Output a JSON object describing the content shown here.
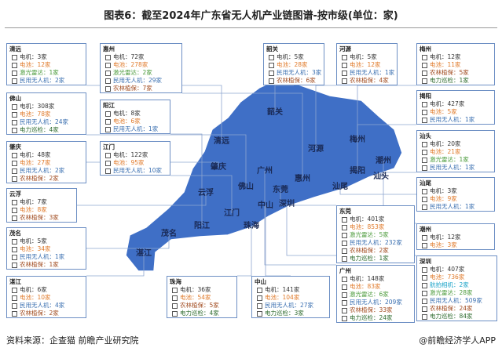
{
  "header": {
    "title": "图表6：截至2024年广东省无人机产业链图谱-按市级(单位：家)"
  },
  "map": {
    "fill": "#3f6fc6",
    "labels": [
      "韶关",
      "清远",
      "河源",
      "梅州",
      "肇庆",
      "广州",
      "惠州",
      "揭阳",
      "潮州",
      "汕头",
      "云浮",
      "佛山",
      "东莞",
      "汕尾",
      "深圳",
      "中山",
      "江门",
      "阳江",
      "珠海",
      "茂名",
      "湛江"
    ]
  },
  "boxes": [
    {
      "city": "清远",
      "items": [
        {
          "text": "电机：3家",
          "color": "#333333"
        },
        {
          "text": "电池：12家",
          "color": "#e07a2a"
        },
        {
          "text": "激光雷达：1家",
          "color": "#4a9a3a"
        },
        {
          "text": "民用无人机：2家",
          "color": "#3a6fb0"
        }
      ]
    },
    {
      "city": "惠州",
      "items": [
        {
          "text": "电机：72家",
          "color": "#333333"
        },
        {
          "text": "电池：278家",
          "color": "#e07a2a"
        },
        {
          "text": "激光雷达：2家",
          "color": "#4a9a3a"
        },
        {
          "text": "民用无人机：29家",
          "color": "#3a6fb0"
        },
        {
          "text": "农林植保：7家",
          "color": "#a04a1e"
        }
      ]
    },
    {
      "city": "韶关",
      "items": [
        {
          "text": "电机：5家",
          "color": "#333333"
        },
        {
          "text": "电池：28家",
          "color": "#e07a2a"
        },
        {
          "text": "民用无人机：3家",
          "color": "#3a6fb0"
        },
        {
          "text": "农林植保：6家",
          "color": "#a04a1e"
        }
      ]
    },
    {
      "city": "河源",
      "items": [
        {
          "text": "电机：5家",
          "color": "#333333"
        },
        {
          "text": "电池：12家",
          "color": "#e07a2a"
        },
        {
          "text": "民用无人机：1家",
          "color": "#3a6fb0"
        },
        {
          "text": "农林植保：4家",
          "color": "#a04a1e"
        }
      ]
    },
    {
      "city": "梅州",
      "items": [
        {
          "text": "电机：12家",
          "color": "#333333"
        },
        {
          "text": "电池：11家",
          "color": "#e07a2a"
        },
        {
          "text": "农林植保：5家",
          "color": "#a04a1e"
        },
        {
          "text": "电力巡检：1家",
          "color": "#2e6b2e"
        }
      ]
    },
    {
      "city": "佛山",
      "items": [
        {
          "text": "电机：308家",
          "color": "#333333"
        },
        {
          "text": "电池：78家",
          "color": "#e07a2a"
        },
        {
          "text": "民用无人机：24家",
          "color": "#3a6fb0"
        },
        {
          "text": "电力巡检：4家",
          "color": "#2e6b2e"
        }
      ]
    },
    {
      "city": "阳江",
      "items": [
        {
          "text": "电机：8家",
          "color": "#333333"
        },
        {
          "text": "电池：6家",
          "color": "#e07a2a"
        },
        {
          "text": "民用无人机：1家",
          "color": "#3a6fb0"
        }
      ]
    },
    {
      "city": "揭阳",
      "items": [
        {
          "text": "电机：427家",
          "color": "#333333"
        },
        {
          "text": "电池：5家",
          "color": "#e07a2a"
        },
        {
          "text": "民用无人机：1家",
          "color": "#3a6fb0"
        }
      ]
    },
    {
      "city": "江门",
      "items": [
        {
          "text": "电机：122家",
          "color": "#333333"
        },
        {
          "text": "电池：95家",
          "color": "#e07a2a"
        },
        {
          "text": "民用无人机：10家",
          "color": "#3a6fb0"
        }
      ]
    },
    {
      "city": "肇庆",
      "items": [
        {
          "text": "电机：48家",
          "color": "#333333"
        },
        {
          "text": "电池：27家",
          "color": "#e07a2a"
        },
        {
          "text": "民用无人机：2家",
          "color": "#3a6fb0"
        },
        {
          "text": "农林植保：2家",
          "color": "#a04a1e"
        }
      ]
    },
    {
      "city": "汕头",
      "items": [
        {
          "text": "电机：20家",
          "color": "#333333"
        },
        {
          "text": "电池：21家",
          "color": "#e07a2a"
        },
        {
          "text": "激光雷达：1家",
          "color": "#4a9a3a"
        },
        {
          "text": "民用无人机：1家",
          "color": "#3a6fb0"
        }
      ]
    },
    {
      "city": "云浮",
      "items": [
        {
          "text": "电机：7家",
          "color": "#333333"
        },
        {
          "text": "电池：8家",
          "color": "#e07a2a"
        },
        {
          "text": "农林植保：3家",
          "color": "#a04a1e"
        }
      ]
    },
    {
      "city": "汕尾",
      "items": [
        {
          "text": "电机：3家",
          "color": "#333333"
        },
        {
          "text": "电池：9家",
          "color": "#e07a2a"
        },
        {
          "text": "民用无人机：1家",
          "color": "#3a6fb0"
        }
      ]
    },
    {
      "city": "东莞",
      "items": [
        {
          "text": "电机：401家",
          "color": "#333333"
        },
        {
          "text": "电池：853家",
          "color": "#e07a2a"
        },
        {
          "text": "激光雷达：5家",
          "color": "#4a9a3a"
        },
        {
          "text": "民用无人机：232家",
          "color": "#3a6fb0"
        },
        {
          "text": "农林植保：2家",
          "color": "#a04a1e"
        },
        {
          "text": "电力巡检：1家",
          "color": "#2e6b2e"
        }
      ]
    },
    {
      "city": "潮州",
      "items": [
        {
          "text": "电机：12家",
          "color": "#333333"
        },
        {
          "text": "电池：3家",
          "color": "#e07a2a"
        }
      ]
    },
    {
      "city": "茂名",
      "items": [
        {
          "text": "电机：5家",
          "color": "#333333"
        },
        {
          "text": "电池：34家",
          "color": "#e07a2a"
        },
        {
          "text": "民用无人机：1家",
          "color": "#3a6fb0"
        },
        {
          "text": "农林植保：1家",
          "color": "#a04a1e"
        }
      ]
    },
    {
      "city": "湛江",
      "items": [
        {
          "text": "电机：6家",
          "color": "#333333"
        },
        {
          "text": "电池：10家",
          "color": "#e07a2a"
        },
        {
          "text": "民用无人机：4家",
          "color": "#3a6fb0"
        },
        {
          "text": "农林植保：2家",
          "color": "#a04a1e"
        }
      ]
    },
    {
      "city": "珠海",
      "items": [
        {
          "text": "电机：36家",
          "color": "#333333"
        },
        {
          "text": "电池：54家",
          "color": "#e07a2a"
        },
        {
          "text": "农林植保：5家",
          "color": "#a04a1e"
        },
        {
          "text": "电力巡检：4家",
          "color": "#2e6b2e"
        }
      ]
    },
    {
      "city": "中山",
      "items": [
        {
          "text": "电机：141家",
          "color": "#333333"
        },
        {
          "text": "电池：104家",
          "color": "#e07a2a"
        },
        {
          "text": "民用无人机：27家",
          "color": "#3a6fb0"
        },
        {
          "text": "电力巡检：3家",
          "color": "#2e6b2e"
        }
      ]
    },
    {
      "city": "广州",
      "items": [
        {
          "text": "电机：148家",
          "color": "#333333"
        },
        {
          "text": "电池：83家",
          "color": "#e07a2a"
        },
        {
          "text": "激光雷达：6家",
          "color": "#4a9a3a"
        },
        {
          "text": "民用无人机：209家",
          "color": "#3a6fb0"
        },
        {
          "text": "农林植保：33家",
          "color": "#a04a1e"
        },
        {
          "text": "电力巡检：24家",
          "color": "#2e6b2e"
        }
      ]
    },
    {
      "city": "深圳",
      "items": [
        {
          "text": "电机：407家",
          "color": "#333333"
        },
        {
          "text": "电池：736家",
          "color": "#e07a2a"
        },
        {
          "text": "航拍相机：2家",
          "color": "#1aa3c8"
        },
        {
          "text": "激光雷达：28家",
          "color": "#4a9a3a"
        },
        {
          "text": "民用无人机：509家",
          "color": "#3a6fb0"
        },
        {
          "text": "农林植保：24家",
          "color": "#a04a1e"
        },
        {
          "text": "电力巡检：84家",
          "color": "#2e6b2e"
        }
      ]
    }
  ],
  "footer": {
    "source": "资料来源：企查猫 前瞻产业研究院",
    "brand": "@前瞻经济学人APP"
  }
}
